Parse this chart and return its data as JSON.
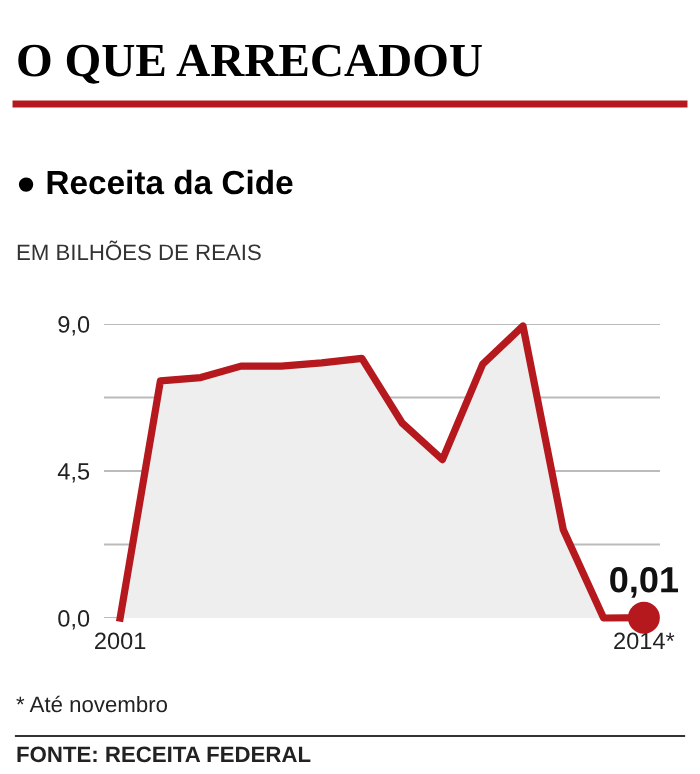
{
  "chart_data": {
    "type": "area",
    "title": "O QUE ARRECADOU",
    "subtitle": "● Receita da Cide",
    "ylabel": "EM BILHÕES DE REAIS",
    "categories": [
      "2001",
      null,
      null,
      null,
      null,
      null,
      null,
      null,
      null,
      null,
      null,
      null,
      null,
      "2014*"
    ],
    "series": [
      {
        "color": "#b5191e",
        "values": [
          0,
          7.26,
          7.36,
          7.71,
          7.71,
          7.81,
          7.95,
          5.97,
          4.85,
          7.77,
          8.94,
          2.7,
          0,
          0.01
        ]
      },
      {
        "type": "scatter",
        "color": "#b5191e",
        "marker": "circle",
        "values": [
          null,
          null,
          null,
          null,
          null,
          null,
          null,
          null,
          null,
          null,
          null,
          null,
          null,
          0.01
        ],
        "value_labels": [
          null,
          null,
          null,
          null,
          null,
          null,
          null,
          null,
          null,
          null,
          null,
          null,
          null,
          "0,01"
        ]
      }
    ],
    "ylim": [
      0,
      9
    ],
    "yticks": [
      {
        "value": 0,
        "label": "0,0"
      },
      {
        "value": 2.25,
        "label": null
      },
      {
        "value": 4.5,
        "label": "4,5"
      },
      {
        "value": 6.75,
        "label": null
      },
      {
        "value": 9,
        "label": "9,0"
      }
    ],
    "grid": "y",
    "annotations": [
      "* Até novembro",
      "FONTE: RECEITA FEDERAL"
    ]
  }
}
